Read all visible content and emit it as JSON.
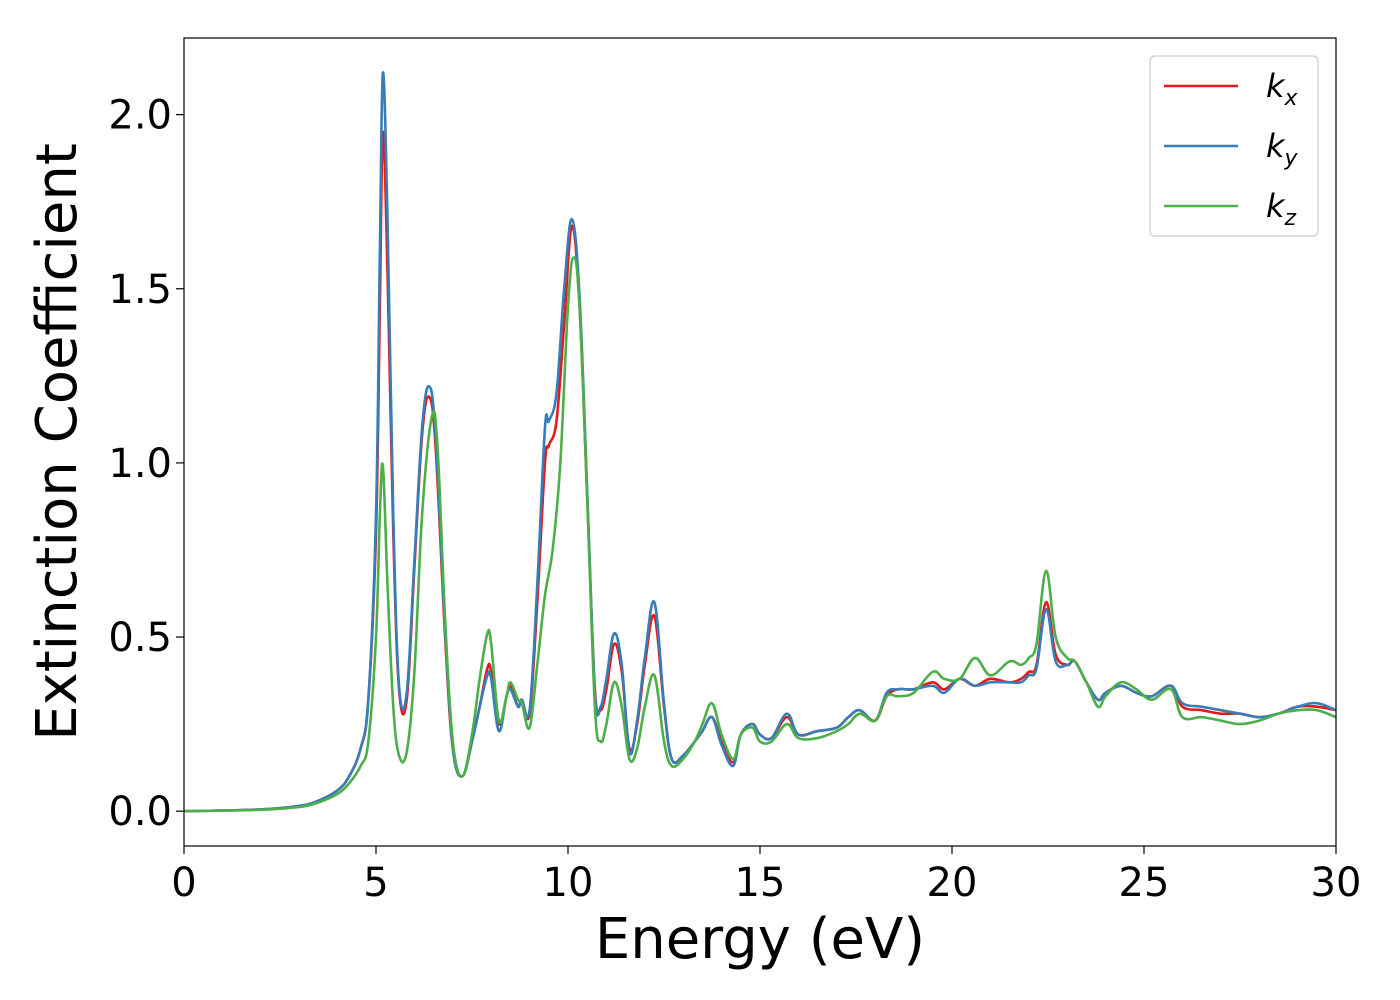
{
  "chart_data": {
    "type": "line",
    "xlabel": "Energy (eV)",
    "ylabel": "Extinction Coefficient",
    "xlim": [
      0,
      30
    ],
    "ylim": [
      -0.1,
      2.22
    ],
    "xticks": [
      0,
      5,
      10,
      15,
      20,
      25,
      30
    ],
    "xtick_labels": [
      "0",
      "5",
      "10",
      "15",
      "20",
      "25",
      "30"
    ],
    "yticks": [
      0.0,
      0.5,
      1.0,
      1.5,
      2.0
    ],
    "ytick_labels": [
      "0.0",
      "0.5",
      "1.0",
      "1.5",
      "2.0"
    ],
    "grid": false,
    "legend_position": "top-right",
    "series": [
      {
        "name": "k",
        "subscript": "x",
        "color": "#e41a1c",
        "x": [
          0,
          2,
          3,
          3.5,
          4,
          4.3,
          4.6,
          4.8,
          5.0,
          5.1,
          5.18,
          5.3,
          5.45,
          5.6,
          5.8,
          6.0,
          6.2,
          6.38,
          6.55,
          6.8,
          7.0,
          7.25,
          7.5,
          7.7,
          7.9,
          8.0,
          8.2,
          8.4,
          8.5,
          8.7,
          8.8,
          9.0,
          9.2,
          9.4,
          9.5,
          9.7,
          9.9,
          10.1,
          10.3,
          10.5,
          10.7,
          10.85,
          11.0,
          11.2,
          11.4,
          11.6,
          11.8,
          12.0,
          12.25,
          12.5,
          12.7,
          13.0,
          13.3,
          13.5,
          13.75,
          14.0,
          14.3,
          14.5,
          14.8,
          15.0,
          15.3,
          15.7,
          16.0,
          16.5,
          17.0,
          17.3,
          17.6,
          18.0,
          18.3,
          18.6,
          19.0,
          19.5,
          19.8,
          20.2,
          20.6,
          21.0,
          21.5,
          21.8,
          22.0,
          22.2,
          22.45,
          22.7,
          23.0,
          23.2,
          23.5,
          23.8,
          24.0,
          24.4,
          24.8,
          25.2,
          25.7,
          26.0,
          26.5,
          27.0,
          27.5,
          28.0,
          28.5,
          29.0,
          29.5,
          30.0
        ],
        "y": [
          0.0,
          0.005,
          0.015,
          0.03,
          0.06,
          0.1,
          0.18,
          0.32,
          0.8,
          1.45,
          1.95,
          1.55,
          0.8,
          0.35,
          0.32,
          0.7,
          1.08,
          1.19,
          1.05,
          0.5,
          0.18,
          0.1,
          0.2,
          0.3,
          0.41,
          0.4,
          0.25,
          0.33,
          0.36,
          0.3,
          0.32,
          0.28,
          0.6,
          1.0,
          1.05,
          1.12,
          1.4,
          1.68,
          1.45,
          0.9,
          0.35,
          0.29,
          0.35,
          0.48,
          0.4,
          0.18,
          0.25,
          0.42,
          0.56,
          0.3,
          0.15,
          0.16,
          0.2,
          0.23,
          0.27,
          0.2,
          0.14,
          0.22,
          0.25,
          0.22,
          0.21,
          0.27,
          0.22,
          0.23,
          0.24,
          0.27,
          0.29,
          0.26,
          0.33,
          0.35,
          0.35,
          0.37,
          0.35,
          0.38,
          0.36,
          0.38,
          0.37,
          0.38,
          0.4,
          0.42,
          0.6,
          0.45,
          0.42,
          0.43,
          0.37,
          0.32,
          0.34,
          0.36,
          0.34,
          0.33,
          0.36,
          0.3,
          0.29,
          0.28,
          0.28,
          0.27,
          0.28,
          0.3,
          0.3,
          0.29
        ]
      },
      {
        "name": "k",
        "subscript": "y",
        "color": "#377eb8",
        "x": [
          0,
          2,
          3,
          3.5,
          4,
          4.3,
          4.6,
          4.8,
          5.0,
          5.1,
          5.18,
          5.3,
          5.45,
          5.6,
          5.8,
          6.0,
          6.2,
          6.38,
          6.55,
          6.8,
          7.0,
          7.25,
          7.5,
          7.7,
          7.9,
          8.0,
          8.2,
          8.4,
          8.5,
          8.7,
          8.8,
          9.0,
          9.2,
          9.4,
          9.5,
          9.7,
          9.9,
          10.1,
          10.3,
          10.5,
          10.7,
          10.85,
          11.0,
          11.2,
          11.4,
          11.6,
          11.8,
          12.0,
          12.25,
          12.5,
          12.7,
          13.0,
          13.3,
          13.5,
          13.75,
          14.0,
          14.3,
          14.5,
          14.8,
          15.0,
          15.3,
          15.7,
          16.0,
          16.5,
          17.0,
          17.3,
          17.6,
          18.0,
          18.3,
          18.6,
          19.0,
          19.5,
          19.8,
          20.2,
          20.6,
          21.0,
          21.5,
          21.8,
          22.0,
          22.2,
          22.45,
          22.7,
          23.0,
          23.2,
          23.5,
          23.8,
          24.0,
          24.4,
          24.8,
          25.2,
          25.7,
          26.0,
          26.5,
          27.0,
          27.5,
          28.0,
          28.5,
          29.0,
          29.5,
          30.0
        ],
        "y": [
          0.0,
          0.005,
          0.015,
          0.03,
          0.06,
          0.1,
          0.18,
          0.32,
          0.85,
          1.6,
          2.12,
          1.7,
          0.85,
          0.36,
          0.34,
          0.72,
          1.1,
          1.22,
          1.08,
          0.52,
          0.18,
          0.1,
          0.2,
          0.3,
          0.39,
          0.38,
          0.23,
          0.33,
          0.35,
          0.3,
          0.32,
          0.29,
          0.65,
          1.1,
          1.12,
          1.2,
          1.5,
          1.7,
          1.48,
          0.92,
          0.34,
          0.3,
          0.38,
          0.51,
          0.42,
          0.17,
          0.26,
          0.44,
          0.6,
          0.31,
          0.15,
          0.16,
          0.2,
          0.23,
          0.27,
          0.19,
          0.13,
          0.22,
          0.25,
          0.22,
          0.21,
          0.28,
          0.22,
          0.23,
          0.24,
          0.27,
          0.29,
          0.26,
          0.34,
          0.35,
          0.35,
          0.36,
          0.34,
          0.38,
          0.36,
          0.37,
          0.37,
          0.37,
          0.39,
          0.41,
          0.58,
          0.43,
          0.42,
          0.43,
          0.37,
          0.32,
          0.34,
          0.36,
          0.34,
          0.33,
          0.36,
          0.31,
          0.3,
          0.29,
          0.28,
          0.27,
          0.28,
          0.3,
          0.31,
          0.29
        ]
      },
      {
        "name": "k",
        "subscript": "z",
        "color": "#4daf4a",
        "x": [
          0,
          2,
          3,
          3.5,
          4,
          4.3,
          4.6,
          4.8,
          5.0,
          5.1,
          5.18,
          5.3,
          5.45,
          5.6,
          5.8,
          6.0,
          6.2,
          6.45,
          6.6,
          6.8,
          7.0,
          7.25,
          7.5,
          7.7,
          7.9,
          8.0,
          8.2,
          8.4,
          8.5,
          8.7,
          8.8,
          9.0,
          9.2,
          9.4,
          9.6,
          9.8,
          10.0,
          10.15,
          10.3,
          10.5,
          10.7,
          10.85,
          11.0,
          11.2,
          11.4,
          11.6,
          11.8,
          12.0,
          12.25,
          12.5,
          12.7,
          13.0,
          13.3,
          13.5,
          13.75,
          14.0,
          14.3,
          14.5,
          14.8,
          15.0,
          15.3,
          15.7,
          16.0,
          16.5,
          17.0,
          17.3,
          17.6,
          18.0,
          18.3,
          18.6,
          19.0,
          19.5,
          19.8,
          20.2,
          20.6,
          21.0,
          21.5,
          21.8,
          22.0,
          22.2,
          22.45,
          22.7,
          23.0,
          23.2,
          23.5,
          23.8,
          24.0,
          24.4,
          24.8,
          25.2,
          25.7,
          26.0,
          26.5,
          27.0,
          27.5,
          28.0,
          28.5,
          29.0,
          29.5,
          30.0
        ],
        "y": [
          0.0,
          0.004,
          0.012,
          0.025,
          0.05,
          0.08,
          0.13,
          0.2,
          0.5,
          0.85,
          0.99,
          0.65,
          0.3,
          0.16,
          0.17,
          0.4,
          0.85,
          1.13,
          1.05,
          0.55,
          0.2,
          0.1,
          0.22,
          0.38,
          0.51,
          0.48,
          0.26,
          0.33,
          0.37,
          0.32,
          0.31,
          0.24,
          0.42,
          0.62,
          0.75,
          1.0,
          1.45,
          1.59,
          1.45,
          0.9,
          0.3,
          0.2,
          0.25,
          0.37,
          0.3,
          0.15,
          0.18,
          0.3,
          0.39,
          0.2,
          0.13,
          0.15,
          0.2,
          0.25,
          0.31,
          0.22,
          0.15,
          0.22,
          0.24,
          0.2,
          0.2,
          0.25,
          0.21,
          0.21,
          0.23,
          0.25,
          0.28,
          0.26,
          0.33,
          0.33,
          0.34,
          0.4,
          0.38,
          0.38,
          0.44,
          0.39,
          0.43,
          0.42,
          0.44,
          0.48,
          0.69,
          0.5,
          0.44,
          0.43,
          0.37,
          0.3,
          0.33,
          0.37,
          0.35,
          0.32,
          0.35,
          0.27,
          0.27,
          0.26,
          0.25,
          0.26,
          0.28,
          0.29,
          0.29,
          0.27
        ]
      }
    ]
  }
}
